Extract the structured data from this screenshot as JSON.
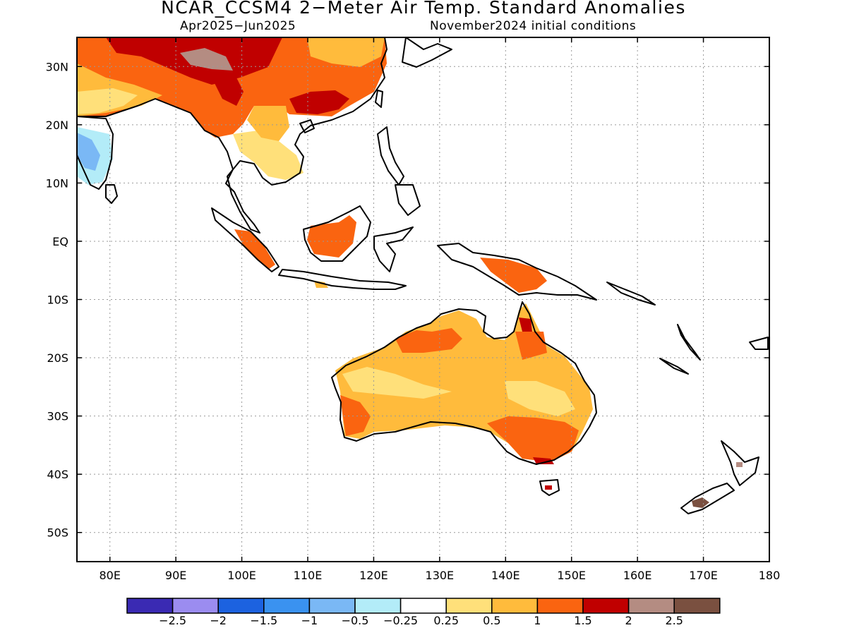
{
  "title": "NCAR_CCSM4 2−Meter Air Temp. Standard Anomalies",
  "period": "Apr2025−Jun2025",
  "init_conditions": "November2024 initial conditions",
  "map": {
    "lon_range": [
      75,
      180
    ],
    "lat_range": [
      -55,
      35
    ],
    "lat_ticks": [
      {
        "value": 30,
        "label": "30N"
      },
      {
        "value": 20,
        "label": "20N"
      },
      {
        "value": 10,
        "label": "10N"
      },
      {
        "value": 0,
        "label": "EQ"
      },
      {
        "value": -10,
        "label": "10S"
      },
      {
        "value": -20,
        "label": "20S"
      },
      {
        "value": -30,
        "label": "30S"
      },
      {
        "value": -40,
        "label": "40S"
      },
      {
        "value": -50,
        "label": "50S"
      }
    ],
    "lon_ticks": [
      {
        "value": 80,
        "label": "80E"
      },
      {
        "value": 90,
        "label": "90E"
      },
      {
        "value": 100,
        "label": "100E"
      },
      {
        "value": 110,
        "label": "110E"
      },
      {
        "value": 120,
        "label": "120E"
      },
      {
        "value": 130,
        "label": "130E"
      },
      {
        "value": 140,
        "label": "140E"
      },
      {
        "value": 150,
        "label": "150E"
      },
      {
        "value": 160,
        "label": "160E"
      },
      {
        "value": 170,
        "label": "170E"
      },
      {
        "value": 180,
        "label": "180"
      }
    ]
  },
  "colorbar": {
    "colors": [
      "#3a2ab3",
      "#9b8cf0",
      "#1c62e0",
      "#3a92f0",
      "#7ab8f5",
      "#b3ecf8",
      "#ffffff",
      "#ffe07a",
      "#ffbb3c",
      "#fa6410",
      "#c00000",
      "#b48c82",
      "#7a5040"
    ],
    "labels": [
      "−2.5",
      "−2",
      "−1.5",
      "−1",
      "−0.5",
      "−0.25",
      "0.25",
      "0.5",
      "1",
      "1.5",
      "2",
      "2.5"
    ]
  }
}
